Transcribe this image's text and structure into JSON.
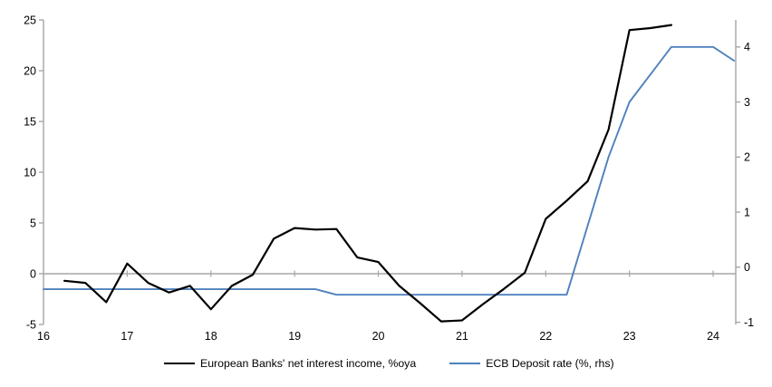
{
  "chart_data": {
    "type": "line",
    "title": "",
    "legend_position": "bottom-center",
    "grid": "zero-line-only",
    "x_axis": {
      "min": 16,
      "max": 24.27,
      "ticks": [
        16,
        17,
        18,
        19,
        20,
        21,
        22,
        23,
        24
      ]
    },
    "left_axis": {
      "min": -5,
      "max": 25,
      "ticks": [
        25,
        20,
        15,
        10,
        5,
        0,
        -5
      ]
    },
    "right_axis": {
      "min": -1.04,
      "max": 4.49,
      "ticks": [
        4,
        3,
        2,
        1,
        0,
        -1
      ]
    },
    "series": [
      {
        "name": "European Banks' net interest income, %oya",
        "axis": "left",
        "color": "#000000",
        "x": [
          16.25,
          16.5,
          16.75,
          17,
          17.25,
          17.5,
          17.75,
          18,
          18.25,
          18.5,
          18.75,
          19,
          19.25,
          19.5,
          19.75,
          20,
          20.25,
          20.5,
          20.75,
          21,
          21.25,
          21.5,
          21.75,
          22,
          22.25,
          22.5,
          22.75,
          23,
          23.25,
          23.5
        ],
        "values": [
          -0.7,
          -0.9,
          -2.8,
          1.0,
          -0.9,
          -1.85,
          -1.2,
          -3.5,
          -1.2,
          -0.1,
          3.45,
          4.5,
          4.35,
          4.4,
          1.6,
          1.15,
          -1.2,
          -2.9,
          -4.7,
          -4.6,
          -3.0,
          -1.5,
          0.1,
          5.4,
          7.2,
          9.1,
          14.2,
          24.0,
          24.2,
          24.5
        ]
      },
      {
        "name": "ECB Deposit rate (%, rhs)",
        "axis": "right",
        "color": "#4F81BD",
        "x": [
          16,
          16.25,
          16.5,
          16.75,
          17,
          17.25,
          17.5,
          17.75,
          18,
          18.25,
          18.5,
          18.75,
          19,
          19.25,
          19.5,
          19.75,
          20,
          20.25,
          20.5,
          20.75,
          21,
          21.25,
          21.5,
          21.75,
          22,
          22.25,
          22.5,
          22.75,
          23,
          23.25,
          23.5,
          23.75,
          24,
          24.25
        ],
        "values": [
          -0.4,
          -0.4,
          -0.4,
          -0.4,
          -0.4,
          -0.4,
          -0.4,
          -0.4,
          -0.4,
          -0.4,
          -0.4,
          -0.4,
          -0.4,
          -0.4,
          -0.5,
          -0.5,
          -0.5,
          -0.5,
          -0.5,
          -0.5,
          -0.5,
          -0.5,
          -0.5,
          -0.5,
          -0.5,
          -0.5,
          0.75,
          2.0,
          3.0,
          3.5,
          4.0,
          4.0,
          4.0,
          3.75
        ]
      }
    ]
  },
  "colors": {
    "axis": "#A6A6A6",
    "zero_line": "#A6A6A6",
    "text": "#000000",
    "background": "#FFFFFF"
  }
}
